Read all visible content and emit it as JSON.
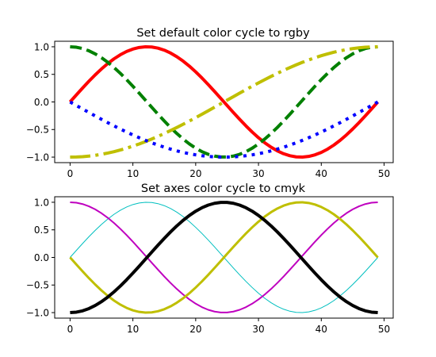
{
  "chart_data": [
    {
      "type": "line",
      "title": "Set default color cycle to rgby",
      "xlabel": "",
      "ylabel": "",
      "xlim": [
        -2.45,
        51.45
      ],
      "ylim": [
        -1.1,
        1.1
      ],
      "x_ticks": [
        0,
        10,
        20,
        30,
        40,
        50
      ],
      "y_ticks": [
        -1.0,
        -0.5,
        0.0,
        0.5,
        1.0
      ],
      "x_tick_labels": [
        "0",
        "10",
        "20",
        "30",
        "40",
        "50"
      ],
      "y_tick_labels": [
        "−1.0",
        "−0.5",
        "0.0",
        "0.5",
        "1.0"
      ],
      "grid": false,
      "x": {
        "start": 0,
        "end": 49,
        "count": 50
      },
      "series": [
        {
          "formula": "sin(2*pi*x/49)",
          "color": "#ff0000",
          "dash": "solid",
          "width": 4
        },
        {
          "formula": "cos(2*pi*x/49)",
          "color": "#008000",
          "dash": "dashed",
          "width": 4
        },
        {
          "formula": "-cos(2*pi*x/98)",
          "color": "#bfbf00",
          "dash": "dashdot",
          "width": 4
        },
        {
          "formula": "-sin(2*pi*x/98)",
          "color": "#0000ff",
          "dash": "dotted",
          "width": 4
        }
      ]
    },
    {
      "type": "line",
      "title": "Set axes color cycle to cmyk",
      "xlabel": "",
      "ylabel": "",
      "xlim": [
        -2.45,
        51.45
      ],
      "ylim": [
        -1.1,
        1.1
      ],
      "x_ticks": [
        0,
        10,
        20,
        30,
        40,
        50
      ],
      "y_ticks": [
        -1.0,
        -0.5,
        0.0,
        0.5,
        1.0
      ],
      "x_tick_labels": [
        "0",
        "10",
        "20",
        "30",
        "40",
        "50"
      ],
      "y_tick_labels": [
        "−1.0",
        "−0.5",
        "0.0",
        "0.5",
        "1.0"
      ],
      "grid": false,
      "x": {
        "start": 0,
        "end": 49,
        "count": 50
      },
      "series": [
        {
          "formula": "sin(2*pi*x/49)",
          "color": "#00bfbf",
          "dash": "solid",
          "width": 1
        },
        {
          "formula": "cos(2*pi*x/49)",
          "color": "#bf00bf",
          "dash": "solid",
          "width": 2
        },
        {
          "formula": "-sin(2*pi*x/49)",
          "color": "#bfbf00",
          "dash": "solid",
          "width": 3
        },
        {
          "formula": "-cos(2*pi*x/49)",
          "color": "#000000",
          "dash": "solid",
          "width": 4
        }
      ]
    }
  ]
}
